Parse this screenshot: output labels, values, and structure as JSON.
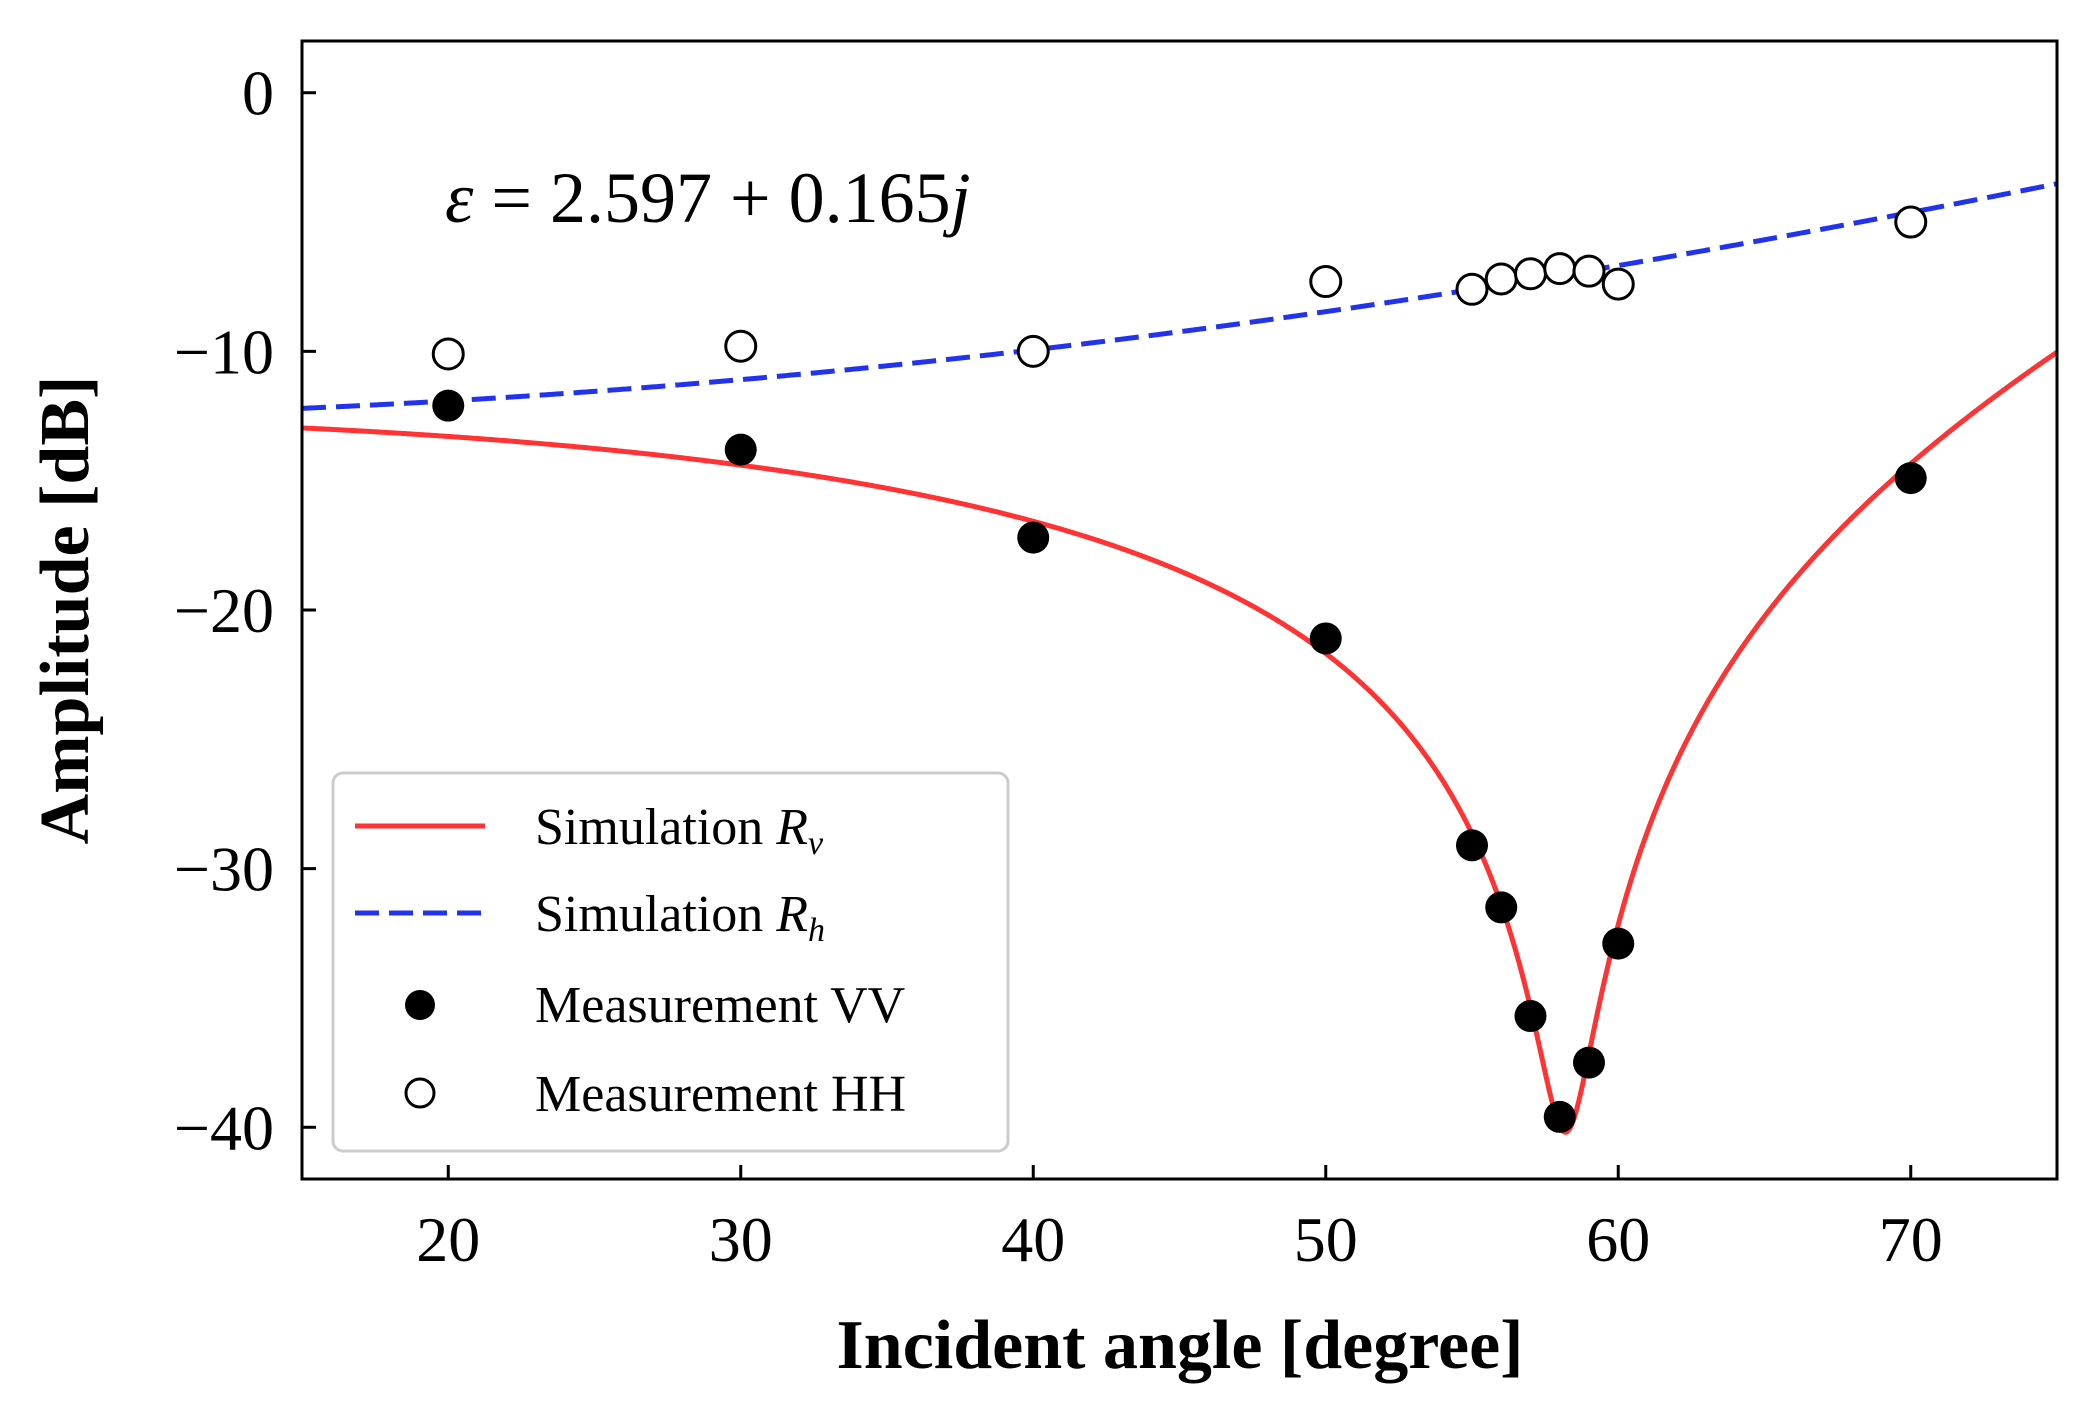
{
  "chart_data": {
    "type": "line",
    "xlabel": "Incident angle [degree]",
    "ylabel": "Amplitude [dB]",
    "xlim": [
      15,
      75
    ],
    "ylim": [
      -42,
      2
    ],
    "xticks": [
      20,
      30,
      40,
      50,
      60,
      70
    ],
    "yticks": [
      0,
      -10,
      -20,
      -30,
      -40
    ],
    "xtick_labels": [
      "20",
      "30",
      "40",
      "50",
      "60",
      "70"
    ],
    "ytick_labels": [
      "0",
      "−10",
      "−20",
      "−30",
      "−40"
    ],
    "grid": false,
    "annotation": {
      "epsilon_symbol": "ε",
      "equals": " = 2.597 + 0.165",
      "j": "j"
    },
    "epsilon": {
      "real": 2.597,
      "imag": 0.165
    },
    "legend_position": "lower-left",
    "series": [
      {
        "name": "Simulation R_v",
        "label_main": "Simulation ",
        "label_symbol": "R",
        "label_sub": "v",
        "kind": "line",
        "style": "solid",
        "color": "#ff3333"
      },
      {
        "name": "Simulation R_h",
        "label_main": "Simulation ",
        "label_symbol": "R",
        "label_sub": "h",
        "kind": "line",
        "style": "dashed",
        "color": "#2233ee"
      },
      {
        "name": "Measurement VV",
        "label_main": "Measurement VV",
        "kind": "scatter",
        "marker": "filled-circle",
        "color": "#000000",
        "x": [
          20,
          30,
          40,
          50,
          55,
          56,
          57,
          58,
          59,
          60,
          70
        ],
        "y": [
          -12.1,
          -13.8,
          -17.2,
          -21.1,
          -29.1,
          -31.5,
          -35.7,
          -39.6,
          -37.5,
          -32.9,
          -14.9
        ]
      },
      {
        "name": "Measurement HH",
        "label_main": "Measurement HH",
        "kind": "scatter",
        "marker": "open-circle",
        "color": "#000000",
        "x": [
          20,
          30,
          40,
          50,
          55,
          56,
          57,
          58,
          59,
          60,
          70
        ],
        "y": [
          -10.1,
          -9.8,
          -10.0,
          -7.3,
          -7.6,
          -7.2,
          -7.0,
          -6.8,
          -6.9,
          -7.4,
          -5.0
        ]
      }
    ]
  }
}
